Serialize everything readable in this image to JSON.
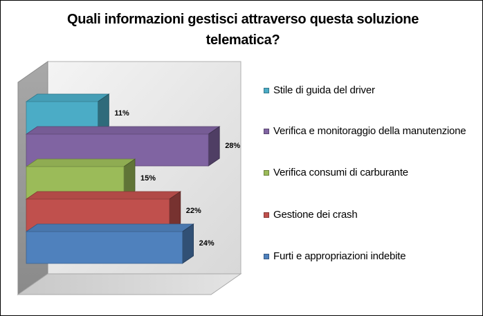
{
  "chart_data": {
    "type": "bar",
    "orientation": "horizontal",
    "three_d": true,
    "title": "Quali informazioni gestisci attraverso questa soluzione telematica?",
    "unit": "%",
    "categories": [
      "Stile di guida del driver",
      "Verifica e monitoraggio della manutenzione",
      "Verifica consumi di carburante",
      "Gestione dei crash",
      "Furti e appropriazioni indebite"
    ],
    "values": [
      11,
      28,
      15,
      22,
      24
    ],
    "data_labels": [
      "11%",
      "28%",
      "15%",
      "22%",
      "24%"
    ],
    "colors": [
      "#4BACC6",
      "#8064A2",
      "#9BBB59",
      "#C0504D",
      "#4F81BD"
    ],
    "xlim": [
      0,
      30
    ],
    "legend_position": "right",
    "grid": false
  }
}
